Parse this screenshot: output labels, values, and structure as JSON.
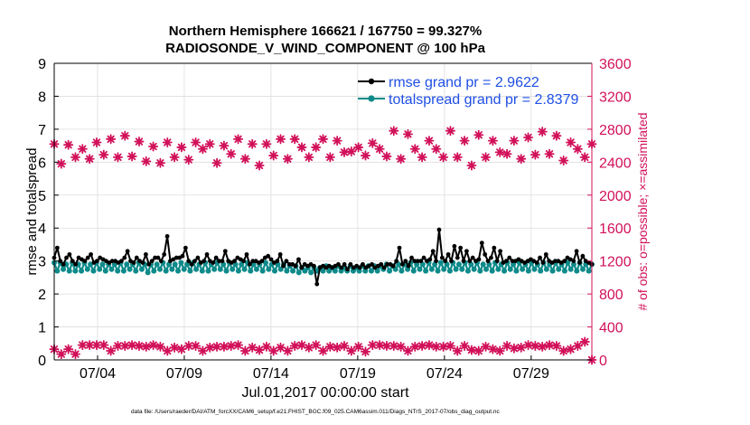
{
  "title_line1": "Northern Hemisphere 166621 / 167750 = 99.327%",
  "title_line2": "RADIOSONDE_V_WIND_COMPONENT @ 100 hPa",
  "footer_start": "Jul.01,2017 00:00:00 start",
  "footer_file": "data file: /Users/raeder/DAI/ATM_forcXX/CAM6_setup/f.e21.FHIST_BGC.f09_025.CAM6assim.011/Diags_NTrS_2017-07/obs_diag_output.nc",
  "colors": {
    "rmse": "#000000",
    "spread": "#0e8a8a",
    "obs": "#d1115a",
    "legend_text": "#1f4fe6",
    "grid": "#dddddd"
  },
  "chart_data": {
    "type": "line",
    "xlabel": "",
    "ylabel_left": "rmse and totalspread",
    "ylabel_right": "# of obs: o=possible; ×=assimilated",
    "xlim_days": [
      0.5,
      31.5
    ],
    "ylim_left": [
      0,
      9
    ],
    "ylim_right": [
      0,
      3600
    ],
    "yticks_left": [
      "0",
      "1",
      "2",
      "3",
      "4",
      "5",
      "6",
      "7",
      "8",
      "9"
    ],
    "yticks_right": [
      "0",
      "400",
      "800",
      "1200",
      "1600",
      "2000",
      "2400",
      "2800",
      "3200",
      "3600"
    ],
    "xticks": [
      {
        "day": 3.0,
        "label": "07/04"
      },
      {
        "day": 8.0,
        "label": "07/09"
      },
      {
        "day": 13.0,
        "label": "07/14"
      },
      {
        "day": 18.0,
        "label": "07/19"
      },
      {
        "day": 23.0,
        "label": "07/24"
      },
      {
        "day": 28.0,
        "label": "07/29"
      }
    ],
    "series": [
      {
        "name": "rmse grand pr = 2.9622",
        "axis": "left",
        "style": "line-dots",
        "values": [
          3.1,
          3.4,
          3.0,
          2.9,
          3.1,
          3.2,
          3.0,
          2.9,
          3.1,
          3.05,
          3.0,
          3.1,
          3.2,
          2.95,
          3.0,
          3.1,
          3.05,
          3.0,
          2.95,
          3.0,
          3.0,
          2.95,
          3.0,
          3.1,
          3.3,
          3.0,
          2.95,
          3.1,
          3.0,
          2.95,
          3.2,
          2.9,
          3.0,
          3.1,
          3.1,
          3.0,
          3.2,
          3.75,
          3.0,
          3.05,
          3.1,
          3.1,
          3.15,
          3.4,
          3.0,
          2.9,
          3.0,
          3.1,
          2.95,
          3.0,
          3.2,
          3.0,
          2.95,
          3.1,
          3.0,
          3.0,
          3.3,
          3.0,
          2.95,
          3.0,
          3.1,
          3.05,
          3.0,
          3.2,
          2.9,
          3.0,
          3.0,
          2.95,
          3.0,
          3.1,
          3.15,
          3.05,
          2.95,
          3.0,
          3.2,
          2.85,
          3.0,
          2.9,
          2.9,
          2.85,
          3.05,
          2.8,
          2.9,
          2.85,
          2.9,
          2.85,
          2.3,
          2.8,
          2.85,
          2.8,
          2.85,
          2.8,
          2.85,
          2.9,
          2.8,
          2.9,
          2.75,
          2.9,
          2.8,
          2.85,
          2.8,
          2.9,
          2.8,
          2.85,
          2.9,
          2.8,
          2.85,
          2.9,
          2.8,
          2.9,
          2.9,
          2.85,
          3.0,
          3.4,
          2.9,
          3.0,
          2.85,
          3.1,
          3.0,
          3.0,
          3.0,
          3.1,
          3.0,
          3.05,
          3.3,
          3.0,
          3.95,
          3.1,
          3.0,
          3.2,
          3.0,
          3.45,
          3.1,
          3.4,
          3.0,
          3.3,
          3.0,
          3.1,
          3.0,
          3.05,
          3.55,
          3.2,
          3.0,
          3.1,
          3.4,
          3.0,
          3.3,
          2.95,
          3.0,
          3.1,
          3.0,
          3.0,
          3.05,
          3.0,
          2.95,
          3.0,
          3.05,
          3.0,
          2.95,
          3.1,
          2.95,
          3.2,
          3.0,
          2.95,
          3.0,
          3.0,
          2.95,
          3.0,
          3.1,
          3.05,
          3.0,
          3.3,
          2.95,
          3.15,
          3.0,
          2.95,
          2.9
        ]
      },
      {
        "name": "totalspread grand pr = 2.8379",
        "axis": "left",
        "style": "line-dots",
        "values": [
          2.95,
          2.7,
          2.95,
          2.75,
          2.9,
          2.7,
          2.95,
          2.7,
          2.9,
          2.7,
          2.95,
          2.75,
          2.9,
          2.7,
          2.95,
          2.75,
          2.9,
          2.7,
          2.9,
          2.75,
          2.9,
          2.7,
          2.95,
          2.7,
          2.9,
          2.75,
          2.9,
          2.7,
          2.95,
          2.75,
          2.9,
          2.65,
          2.9,
          2.7,
          2.9,
          2.75,
          2.95,
          2.7,
          2.9,
          2.75,
          2.9,
          2.7,
          2.95,
          2.75,
          2.9,
          2.7,
          2.95,
          2.75,
          2.9,
          2.7,
          2.95,
          2.7,
          2.9,
          2.75,
          2.95,
          2.75,
          2.9,
          2.7,
          2.95,
          2.75,
          2.9,
          2.7,
          2.9,
          2.75,
          2.95,
          2.7,
          2.9,
          2.75,
          2.9,
          2.7,
          2.95,
          2.75,
          2.9,
          2.7,
          2.9,
          2.75,
          2.9,
          2.7,
          2.85,
          2.7,
          2.85,
          2.65,
          2.8,
          2.7,
          2.8,
          2.65,
          2.8,
          2.7,
          2.8,
          2.7,
          2.85,
          2.7,
          2.8,
          2.7,
          2.85,
          2.7,
          2.8,
          2.7,
          2.85,
          2.7,
          2.8,
          2.7,
          2.85,
          2.7,
          2.85,
          2.7,
          2.85,
          2.7,
          2.85,
          2.75,
          2.9,
          2.7,
          2.85,
          2.75,
          2.9,
          2.7,
          2.9,
          2.75,
          2.95,
          2.7,
          2.9,
          2.75,
          2.9,
          2.7,
          2.95,
          2.75,
          2.9,
          2.7,
          2.95,
          2.75,
          2.9,
          2.7,
          2.95,
          2.75,
          2.9,
          2.75,
          2.95,
          2.7,
          2.9,
          2.75,
          2.95,
          2.7,
          2.9,
          2.75,
          2.9,
          2.7,
          2.95,
          2.75,
          2.9,
          2.7,
          2.95,
          2.75,
          2.9,
          2.7,
          2.95,
          2.75,
          2.9,
          2.7,
          2.95,
          2.75,
          2.9,
          2.7,
          2.95,
          2.75,
          2.9,
          2.7,
          2.95,
          2.75,
          2.9,
          2.7,
          2.95,
          2.75,
          2.9,
          2.7,
          2.95,
          2.75,
          2.9,
          2.7,
          2.9
        ]
      },
      {
        "name": "obs possible",
        "axis": "right",
        "style": "markers",
        "values": [
          2620,
          2380,
          2610,
          2460,
          2560,
          2440,
          2640,
          2490,
          2680,
          2460,
          2720,
          2470,
          2650,
          2410,
          2590,
          2390,
          2640,
          2460,
          2580,
          2430,
          2640,
          2560,
          2620,
          2390,
          2600,
          2500,
          2680,
          2440,
          2620,
          2360,
          2620,
          2480,
          2680,
          2440,
          2680,
          2580,
          2460,
          2580,
          2680,
          2460,
          2660,
          2520,
          2530,
          2580,
          2480,
          2630,
          2560,
          2470,
          2780,
          2440,
          2740,
          2560,
          2460,
          2660,
          2560,
          2460,
          2780,
          2460,
          2660,
          2360,
          2730,
          2460,
          2660,
          2520,
          2500,
          2660,
          2440,
          2700,
          2490,
          2770,
          2500,
          2720,
          2420,
          2640,
          2560,
          2460,
          2620
        ]
      },
      {
        "name": "obs assimilated",
        "axis": "right",
        "style": "markers",
        "values": [
          130,
          70,
          130,
          70,
          180,
          180,
          180,
          180,
          110,
          170,
          170,
          180,
          170,
          160,
          180,
          160,
          110,
          150,
          130,
          170,
          170,
          110,
          150,
          160,
          160,
          170,
          180,
          110,
          150,
          120,
          160,
          110,
          150,
          110,
          170,
          180,
          150,
          180,
          110,
          160,
          150,
          170,
          110,
          160,
          100,
          180,
          180,
          170,
          170,
          160,
          110,
          160,
          170,
          180,
          160,
          160,
          170,
          110,
          170,
          120,
          110,
          160,
          130,
          110,
          170,
          140,
          150,
          180,
          170,
          160,
          180,
          170,
          110,
          130,
          170,
          220,
          0
        ]
      }
    ]
  }
}
